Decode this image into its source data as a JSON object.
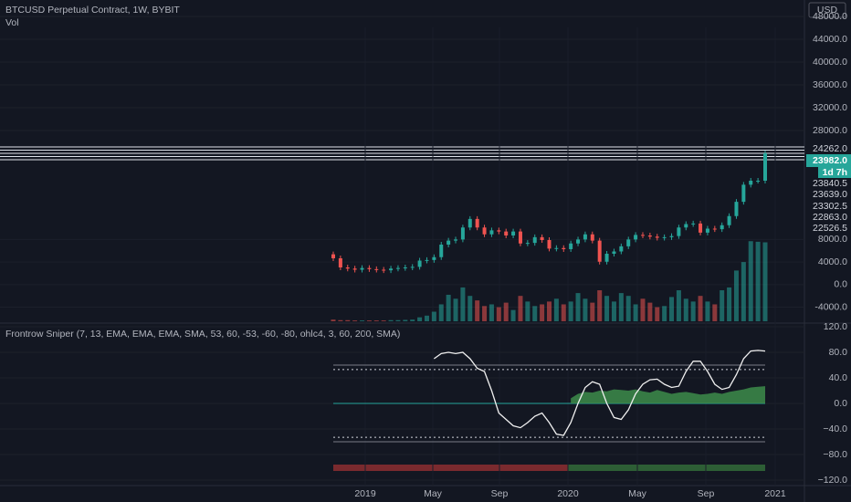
{
  "header": {
    "title": "BTCUSD Perpetual Contract, 1W, BYBIT",
    "volume_label": "Vol",
    "currency": "USD"
  },
  "chart_data": {
    "type": "candlestick",
    "up_color": "#26a69a",
    "down_color": "#ef5350",
    "first_open": 6300,
    "closes": [
      5600,
      4000,
      3800,
      3600,
      3900,
      3700,
      3600,
      3500,
      3800,
      3900,
      4000,
      4100,
      5200,
      5300,
      5800,
      8000,
      8700,
      8900,
      11000,
      12500,
      11000,
      9800,
      10500,
      10300,
      9600,
      10300,
      8200,
      8300,
      9300,
      8800,
      7300,
      7400,
      7200,
      8200,
      8900,
      9800,
      8700,
      5000,
      6400,
      6800,
      7700,
      8900,
      9700,
      9600,
      9400,
      9200,
      9300,
      9500,
      11000,
      11600,
      11700,
      10100,
      10800,
      10700,
      11400,
      13000,
      15500,
      18500,
      19200,
      19200,
      23982
    ],
    "price_ylim": [
      48000,
      28000
    ],
    "price_ticks": [
      {
        "value": 48000,
        "label": "48000.0"
      },
      {
        "value": 44000,
        "label": "44000.0"
      },
      {
        "value": 40000,
        "label": "40000.0"
      },
      {
        "value": 36000,
        "label": "36000.0"
      },
      {
        "value": 32000,
        "label": "32000.0"
      },
      {
        "value": 28000,
        "label": "28000.0"
      }
    ],
    "level_labels": [
      "24262.0",
      "23840.5",
      "23639.0",
      "23302.5",
      "22863.0",
      "22526.5"
    ],
    "last_price": {
      "value": 23982,
      "label": "23982.0"
    },
    "countdown": "1d 7h",
    "volumes": [
      -6200,
      -6300,
      -6300,
      -6350,
      -6350,
      -6350,
      -6350,
      -6350,
      -6300,
      -6300,
      -6250,
      -6200,
      -5800,
      -5500,
      -4800,
      -3500,
      -1800,
      -2500,
      -500,
      -2000,
      -2800,
      -3800,
      -3500,
      -4000,
      -3200,
      -4500,
      -2000,
      -3000,
      -3800,
      -3500,
      -3000,
      -2500,
      -3500,
      -3000,
      -1500,
      -2500,
      -3200,
      -1000,
      -2000,
      -3000,
      -1500,
      -2000,
      -3500,
      -2500,
      -3200,
      -4000,
      -3800,
      -2200,
      -1000,
      -2500,
      -3000,
      -2000,
      -3000,
      -3500,
      -1000,
      -500,
      2500,
      4000,
      7700,
      7600,
      7500
    ],
    "volume_ylim": [
      -6500,
      8000
    ],
    "volume_ticks": [
      {
        "value": 8000,
        "label": "8000.0"
      },
      {
        "value": 4000,
        "label": "4000.0"
      },
      {
        "value": 0,
        "label": "0.0"
      },
      {
        "value": -4000,
        "label": "-4000.0"
      }
    ],
    "time_ticks": [
      "2019",
      "May",
      "Sep",
      "2020",
      "May",
      "Sep",
      "2021"
    ],
    "indicator": {
      "title": "Frontrow Sniper (7, 13, EMA, EMA, EMA, SMA, 53, 60, -53, -60, -80, ohlc4, 3, 60, 200, SMA)",
      "ylim": [
        -120,
        120
      ],
      "yticks": [
        {
          "value": 120,
          "label": "120.0"
        },
        {
          "value": 80,
          "label": "80.0"
        },
        {
          "value": 40,
          "label": "40.0"
        },
        {
          "value": 0,
          "label": "0.0"
        },
        {
          "value": -40,
          "label": "−40.0"
        },
        {
          "value": -80,
          "label": "−80.0"
        },
        {
          "value": -120,
          "label": "−120.0"
        }
      ],
      "solid_levels": [
        60,
        -60
      ],
      "dotted_levels": [
        53,
        -53
      ],
      "line_color": "#f0f0f0",
      "area_color": "#3d8c4a",
      "values": [
        null,
        null,
        null,
        null,
        null,
        null,
        null,
        null,
        null,
        null,
        null,
        null,
        null,
        null,
        70,
        78,
        80,
        78,
        80,
        70,
        55,
        50,
        20,
        -15,
        -25,
        -35,
        -38,
        -30,
        -20,
        -15,
        -30,
        -48,
        -50,
        -30,
        0,
        25,
        34,
        30,
        0,
        -22,
        -25,
        -10,
        15,
        30,
        37,
        38,
        30,
        25,
        27,
        50,
        66,
        66,
        50,
        30,
        22,
        25,
        45,
        70,
        82,
        83,
        82
      ],
      "area": [
        null,
        null,
        null,
        null,
        null,
        null,
        null,
        null,
        null,
        null,
        null,
        null,
        null,
        null,
        null,
        null,
        null,
        null,
        null,
        null,
        null,
        null,
        null,
        null,
        null,
        null,
        null,
        null,
        null,
        null,
        null,
        null,
        null,
        8,
        15,
        18,
        17,
        20,
        19,
        22,
        21,
        20,
        22,
        19,
        17,
        21,
        18,
        15,
        17,
        18,
        16,
        14,
        15,
        17,
        15,
        18,
        20,
        22,
        25,
        26,
        27
      ]
    }
  }
}
